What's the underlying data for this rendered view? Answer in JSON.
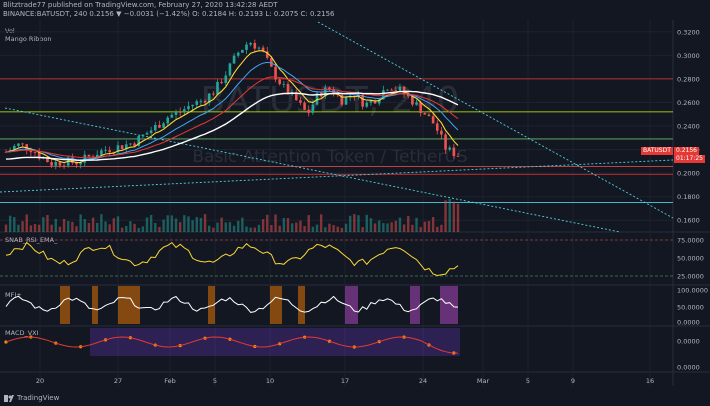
{
  "header": {
    "publisher_line": "Blitztrade77 published on TradingView.com, February 27, 2020 13:42:28 AEDT",
    "symbol_line": "BINANCE:BATUSDT, 240  0.2156  ▼ −0.0031 (−1.42%)  O: 0.2184  H: 0.2193  L: 0.2075  C: 0.2156"
  },
  "indicators": {
    "vol": "Vol",
    "mango": "Mango Ribbon",
    "rsi": "SNAB_RSI_EMA_",
    "mfi": "MFI+",
    "macd": "MACD_VXI"
  },
  "watermark": {
    "symbol": "BATUSDT, 240",
    "name": "Basic Attention Token / TetherUS"
  },
  "price_axis": [
    "0.3200",
    "0.3000",
    "0.2800",
    "0.2600",
    "0.2400",
    "0.2200",
    "0.2000",
    "0.1800",
    "0.1600"
  ],
  "rsi_axis": [
    "75.0000",
    "50.0000",
    "25.0000"
  ],
  "mfi_axis": [
    "100.0000",
    "50.0000",
    "0.0000"
  ],
  "macd_axis": [
    "0.0000",
    "0.0000"
  ],
  "badges": {
    "symbol": "BATUSDT",
    "price": "0.2156",
    "countdown": "01:17:25",
    "symbol_color": "#e53935",
    "price_color": "#e53935",
    "countdown_color": "#e53935"
  },
  "time_axis": [
    "20",
    "27",
    "Feb",
    "5",
    "10",
    "17",
    "24",
    "Mar",
    "5",
    "9",
    "16"
  ],
  "footer": {
    "brand": "TradingView"
  },
  "chart_data": {
    "type": "candlestick",
    "symbol": "BINANCE:BATUSDT",
    "interval": "240",
    "ylim": [
      0.15,
      0.33
    ],
    "last": {
      "open": 0.2184,
      "high": 0.2193,
      "low": 0.2075,
      "close": 0.2156,
      "change": -0.0031,
      "change_pct": -1.42
    },
    "horizontal_levels": [
      {
        "price": 0.28,
        "color": "#e53935"
      },
      {
        "price": 0.252,
        "color": "#c6ff00"
      },
      {
        "price": 0.229,
        "color": "#66bb6a"
      },
      {
        "price": 0.2055,
        "color": "#ef5350"
      },
      {
        "price": 0.199,
        "color": "#d32f2f"
      },
      {
        "price": 0.175,
        "color": "#4dd0e1"
      }
    ],
    "close_series": [
      0.218,
      0.224,
      0.222,
      0.214,
      0.208,
      0.21,
      0.209,
      0.213,
      0.218,
      0.221,
      0.223,
      0.226,
      0.233,
      0.24,
      0.248,
      0.252,
      0.258,
      0.262,
      0.27,
      0.285,
      0.302,
      0.312,
      0.305,
      0.286,
      0.272,
      0.262,
      0.25,
      0.268,
      0.272,
      0.262,
      0.268,
      0.258,
      0.264,
      0.275,
      0.27,
      0.262,
      0.252,
      0.241,
      0.22,
      0.2156
    ]
  }
}
